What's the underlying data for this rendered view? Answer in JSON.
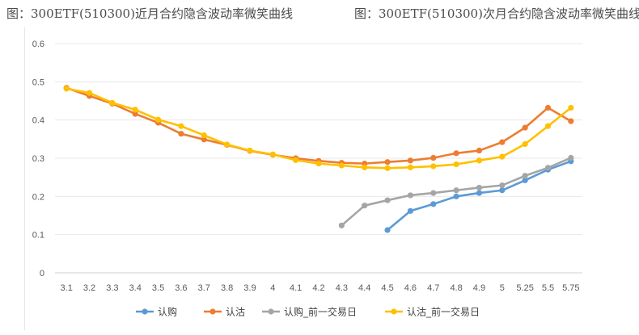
{
  "captions": {
    "left": "图：300ETF(510300)近月合约隐含波动率微笑曲线",
    "right": "图：300ETF(510300)次月合约隐含波动率微笑曲线"
  },
  "chart_data": {
    "type": "line",
    "categories": [
      "3.1",
      "3.2",
      "3.3",
      "3.4",
      "3.5",
      "3.6",
      "3.7",
      "3.8",
      "3.9",
      "4",
      "4.1",
      "4.2",
      "4.3",
      "4.4",
      "4.5",
      "4.6",
      "4.7",
      "4.8",
      "4.9",
      "5",
      "5.25",
      "5.5",
      "5.75"
    ],
    "ylim": [
      0,
      0.6
    ],
    "yticks": [
      "0",
      "0.1",
      "0.2",
      "0.3",
      "0.4",
      "0.5",
      "0.6"
    ],
    "grid": true,
    "legend_position": "bottom",
    "series": [
      {
        "name": "认购",
        "color": "#5B9BD5",
        "values": [
          null,
          null,
          null,
          null,
          null,
          null,
          null,
          null,
          null,
          null,
          null,
          null,
          null,
          null,
          0.112,
          0.162,
          0.18,
          0.2,
          0.209,
          0.216,
          0.242,
          0.27,
          0.292
        ]
      },
      {
        "name": "认沽",
        "color": "#ED7D31",
        "values": [
          0.484,
          0.463,
          0.443,
          0.416,
          0.393,
          0.364,
          0.349,
          0.335,
          0.319,
          0.309,
          0.3,
          0.293,
          0.288,
          0.286,
          0.29,
          0.294,
          0.301,
          0.313,
          0.32,
          0.342,
          0.38,
          0.432,
          0.397
        ]
      },
      {
        "name": "认购_前一交易日",
        "color": "#A5A5A5",
        "values": [
          null,
          null,
          null,
          null,
          null,
          null,
          null,
          null,
          null,
          null,
          null,
          null,
          0.124,
          0.176,
          0.19,
          0.203,
          0.209,
          0.216,
          0.223,
          0.229,
          0.254,
          0.275,
          0.301
        ]
      },
      {
        "name": "认沽_前一交易日",
        "color": "#FFC000",
        "values": [
          0.482,
          0.471,
          0.445,
          0.427,
          0.401,
          0.384,
          0.36,
          0.336,
          0.32,
          0.31,
          0.295,
          0.286,
          0.281,
          0.276,
          0.274,
          0.276,
          0.279,
          0.284,
          0.294,
          0.304,
          0.337,
          0.384,
          0.432
        ]
      }
    ]
  }
}
